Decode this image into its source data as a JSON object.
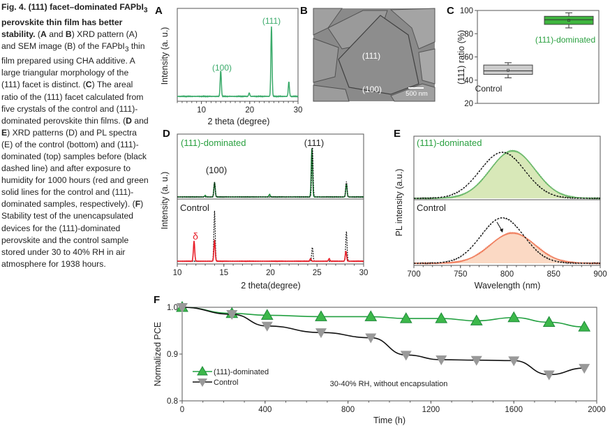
{
  "caption": {
    "title": "Fig. 4. (111) facet–dominated FAPbI",
    "title_sub": "3",
    "title_rest": " perovskite thin film has better stability.",
    "parts": [
      {
        "label": "A",
        "text": " and "
      },
      {
        "label": "B",
        "text": ") XRD pattern (A) and SEM image (B) of the FAPbI"
      },
      {
        "sub": "3",
        "text": " thin film prepared using CHA additive. A large triangular morphology of the (111) facet is distinct. ("
      },
      {
        "label": "C",
        "text": ") The areal ratio of the (111) facet calculated from five crystals of the control and (111)-dominated perovskite thin films. ("
      },
      {
        "label": "D",
        "text": " and "
      },
      {
        "label": "E",
        "text": ") XRD patterns (D) and PL spectra (E) of the control (bottom) and (111)-dominated (top) samples before (black dashed line) and after exposure to humidity for 1000 hours (red and green solid lines for the control and (111)-dominated samples, respectively). ("
      },
      {
        "label": "F",
        "text": ") Stability test of the unencapsulated devices for the (111)-dominated perovskite and the control sample stored under 30 to 40% RH in air atmosphere for 1938 hours."
      }
    ]
  },
  "colors": {
    "green": "#3aaa6a",
    "dark_green": "#1e8a3a",
    "red": "#e8202a",
    "salmon": "#f08060",
    "fill_green": "#d8e8b8",
    "fill_salmon": "#fbd9c4",
    "gray": "#999999"
  },
  "chart_data": [
    {
      "panel": "A",
      "type": "line",
      "xlabel": "2 theta (degree)",
      "ylabel": "Intensity (a. u.)",
      "xlim": [
        5,
        30
      ],
      "xticks": [
        10,
        20,
        30
      ],
      "peaks": [
        {
          "x": 14.0,
          "h": 0.37
        },
        {
          "x": 19.9,
          "h": 0.05
        },
        {
          "x": 24.5,
          "h": 1.0
        },
        {
          "x": 28.1,
          "h": 0.21
        }
      ],
      "annotations": [
        {
          "text": "(100)",
          "x": 14.0
        },
        {
          "text": "(111)",
          "x": 24.5
        }
      ]
    },
    {
      "panel": "B",
      "type": "image",
      "labels": [
        "(111)",
        "(100)"
      ],
      "scale_bar": "500 nm"
    },
    {
      "panel": "C",
      "type": "box",
      "ylabel": "(111) ratio (%)",
      "ylim": [
        20,
        100
      ],
      "yticks": [
        20,
        40,
        60,
        80,
        100
      ],
      "boxes": [
        {
          "name": "Control",
          "q1": 45,
          "median": 48,
          "q3": 53,
          "mean": 48.5,
          "min": 42,
          "max": 55
        },
        {
          "name": "(111)-dominated",
          "q1": 88,
          "median": 92,
          "q3": 95,
          "mean": 91.5,
          "min": 85,
          "max": 98
        }
      ]
    },
    {
      "panel": "D",
      "type": "line",
      "xlabel": "2 theta(degree)",
      "ylabel": "Intensity (a. u.)",
      "xlim": [
        10,
        30
      ],
      "xticks": [
        10,
        15,
        20,
        25,
        30
      ],
      "top_label": "(111)-dominated",
      "bottom_label": "Control",
      "annotations": [
        {
          "text": "(100)",
          "x": 14.0
        },
        {
          "text": "(111)",
          "x": 24.5
        },
        {
          "text": "δ",
          "x": 11.8
        }
      ],
      "series": [
        {
          "name": "(111)-dominated after",
          "style": "solid-green",
          "panel": "top",
          "peaks": [
            {
              "x": 13.0,
              "h": 0.03
            },
            {
              "x": 14.0,
              "h": 0.3
            },
            {
              "x": 19.9,
              "h": 0.05
            },
            {
              "x": 24.45,
              "h": 1.0
            },
            {
              "x": 28.15,
              "h": 0.28
            }
          ]
        },
        {
          "name": "(111)-dominated before",
          "style": "dashed-black",
          "panel": "top",
          "peaks": [
            {
              "x": 14.0,
              "h": 0.3
            },
            {
              "x": 24.5,
              "h": 1.05
            },
            {
              "x": 28.15,
              "h": 0.32
            }
          ]
        },
        {
          "name": "Control before",
          "style": "dashed-black",
          "panel": "bottom",
          "peaks": [
            {
              "x": 14.0,
              "h": 1.0
            },
            {
              "x": 24.5,
              "h": 0.28
            },
            {
              "x": 28.15,
              "h": 0.6
            }
          ]
        },
        {
          "name": "Control after",
          "style": "solid-red",
          "panel": "bottom",
          "peaks": [
            {
              "x": 11.8,
              "h": 0.4
            },
            {
              "x": 14.0,
              "h": 0.42
            },
            {
              "x": 24.3,
              "h": 0.05
            },
            {
              "x": 26.3,
              "h": 0.05
            },
            {
              "x": 28.1,
              "h": 0.2
            }
          ]
        }
      ]
    },
    {
      "panel": "E",
      "type": "area",
      "xlabel": "Wavelength (nm)",
      "ylabel": "PL intensity (a.u.)",
      "xlim": [
        700,
        900
      ],
      "xticks": [
        700,
        750,
        800,
        850,
        900
      ],
      "top_label": "(111)-dominated",
      "bottom_label": "Control",
      "series": [
        {
          "style": "solid-green",
          "panel": "top",
          "center": 806,
          "sigma": 24,
          "h": 1.0
        },
        {
          "style": "dashed-black",
          "panel": "top",
          "center": 795,
          "sigma": 24,
          "h": 0.97
        },
        {
          "style": "solid-salmon",
          "panel": "bottom",
          "center": 806,
          "sigma": 24,
          "h": 0.62
        },
        {
          "style": "dashed-black",
          "panel": "bottom",
          "center": 795,
          "sigma": 23,
          "h": 0.93
        }
      ]
    },
    {
      "panel": "F",
      "type": "line",
      "xlabel": "Time (h)",
      "ylabel": "Normalized PCE",
      "xlim": [
        0,
        2000
      ],
      "ylim": [
        0.8,
        1.0
      ],
      "xticks": [
        0,
        400,
        800,
        1200,
        1600,
        2000
      ],
      "yticks": [
        0.8,
        0.9,
        1.0
      ],
      "annotation": "30-40% RH, without encapsulation",
      "legend": "bottom-left",
      "x": [
        0,
        240,
        410,
        670,
        910,
        1080,
        1250,
        1420,
        1600,
        1770,
        1940
      ],
      "series": [
        {
          "name": "(111)-dominated",
          "values": [
            1.0,
            0.987,
            0.983,
            0.98,
            0.98,
            0.976,
            0.976,
            0.971,
            0.978,
            0.968,
            0.958
          ]
        },
        {
          "name": "Control",
          "values": [
            1.0,
            0.985,
            0.96,
            0.946,
            0.935,
            0.898,
            0.888,
            0.887,
            0.886,
            0.856,
            0.87
          ]
        }
      ]
    }
  ]
}
